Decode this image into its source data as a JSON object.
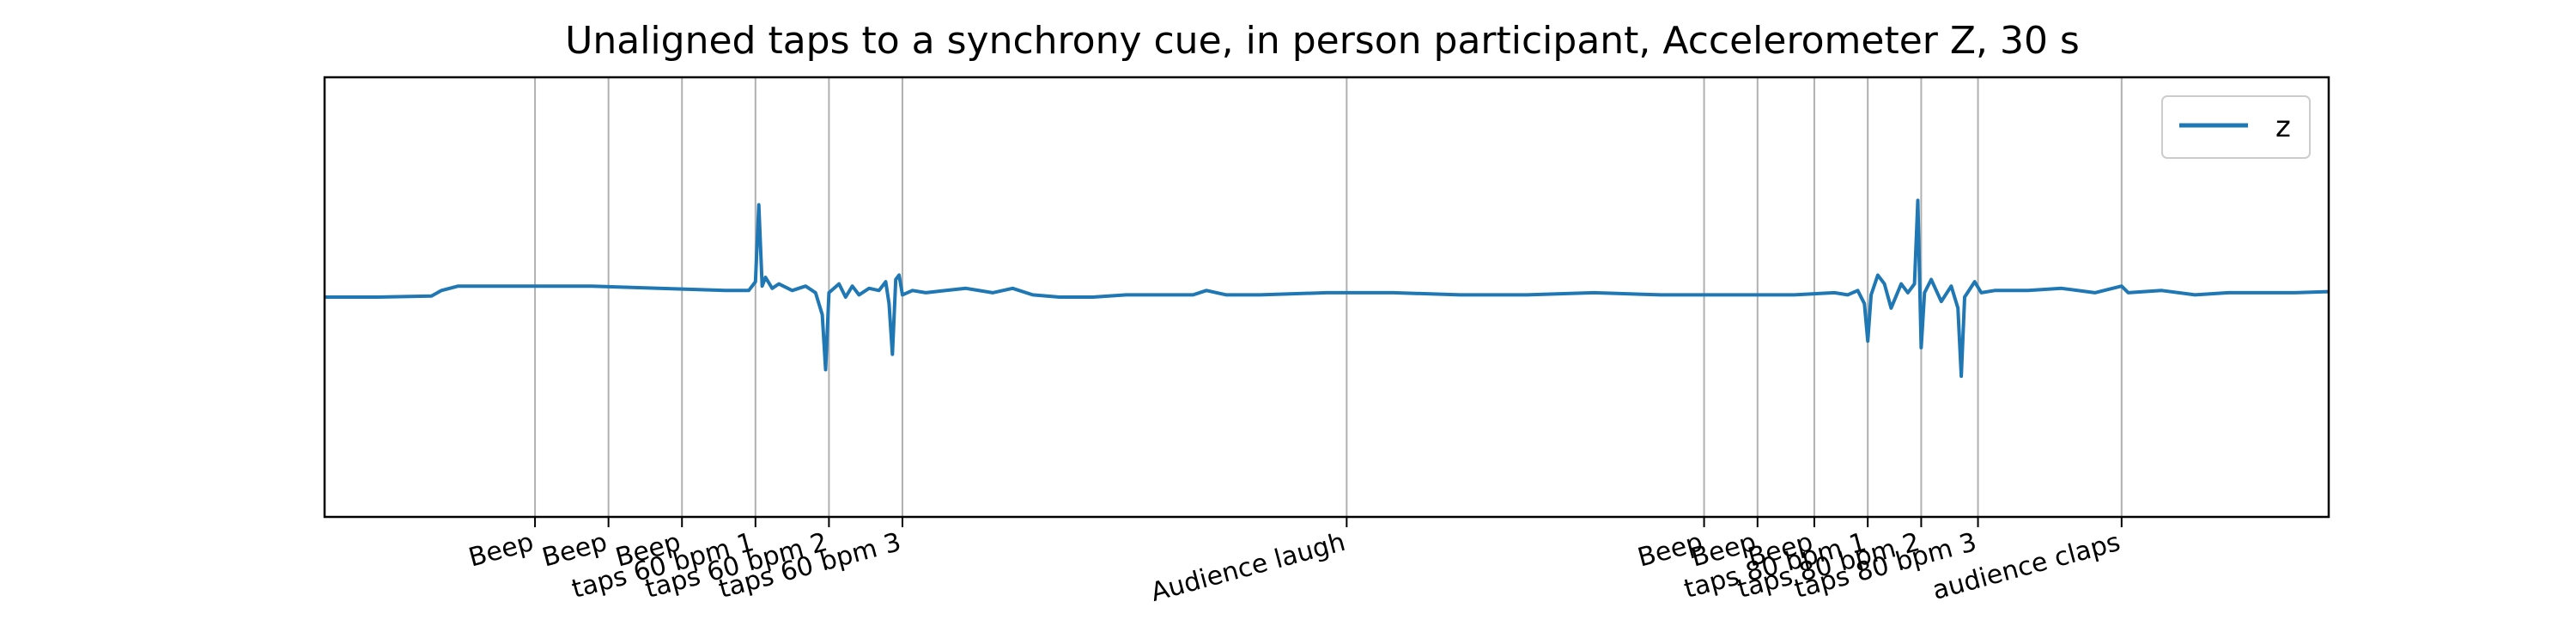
{
  "chart_data": {
    "type": "line",
    "title": "Unaligned taps to a synchrony cue, in person participant, Accelerometer Z, 30 s",
    "xlabel": "",
    "ylabel": "",
    "xlim": [
      0,
      30
    ],
    "ylim": [
      -1,
      1
    ],
    "grid": "vertical lines at annotated events",
    "legend": {
      "placement": "top-right",
      "entries": [
        "z"
      ]
    },
    "colors": {
      "series": "#1f77b4",
      "grid": "#b0b0b0",
      "axes": "#000000"
    },
    "events": [
      {
        "t": 3.15,
        "label": "Beep"
      },
      {
        "t": 4.25,
        "label": "Beep"
      },
      {
        "t": 5.35,
        "label": "Beep"
      },
      {
        "t": 6.45,
        "label": "taps 60 bpm 1"
      },
      {
        "t": 7.55,
        "label": "taps 60 bpm 2"
      },
      {
        "t": 8.65,
        "label": "taps 60 bpm 3"
      },
      {
        "t": 15.3,
        "label": "Audience laugh"
      },
      {
        "t": 20.65,
        "label": "Beep"
      },
      {
        "t": 21.45,
        "label": "Beep"
      },
      {
        "t": 22.3,
        "label": "Beep"
      },
      {
        "t": 23.1,
        "label": "taps 80 bpm 1"
      },
      {
        "t": 23.9,
        "label": "taps 80 bpm 2"
      },
      {
        "t": 24.75,
        "label": "taps 80 bpm 3"
      },
      {
        "t": 26.9,
        "label": "audience claps"
      }
    ],
    "series": [
      {
        "name": "z",
        "points": [
          [
            0,
            0.0
          ],
          [
            0.8,
            0.0
          ],
          [
            1.6,
            0.005
          ],
          [
            1.75,
            0.03
          ],
          [
            2.0,
            0.05
          ],
          [
            3.0,
            0.05
          ],
          [
            4.0,
            0.05
          ],
          [
            5.0,
            0.04
          ],
          [
            6.0,
            0.03
          ],
          [
            6.35,
            0.03
          ],
          [
            6.45,
            0.07
          ],
          [
            6.5,
            0.42
          ],
          [
            6.55,
            0.05
          ],
          [
            6.6,
            0.09
          ],
          [
            6.7,
            0.04
          ],
          [
            6.8,
            0.06
          ],
          [
            7.0,
            0.03
          ],
          [
            7.2,
            0.05
          ],
          [
            7.35,
            0.02
          ],
          [
            7.45,
            -0.08
          ],
          [
            7.5,
            -0.33
          ],
          [
            7.55,
            0.02
          ],
          [
            7.7,
            0.06
          ],
          [
            7.8,
            0.0
          ],
          [
            7.9,
            0.05
          ],
          [
            8.0,
            0.01
          ],
          [
            8.15,
            0.04
          ],
          [
            8.3,
            0.03
          ],
          [
            8.4,
            0.07
          ],
          [
            8.45,
            -0.03
          ],
          [
            8.5,
            -0.26
          ],
          [
            8.55,
            0.08
          ],
          [
            8.6,
            0.1
          ],
          [
            8.65,
            0.01
          ],
          [
            8.8,
            0.03
          ],
          [
            9.0,
            0.02
          ],
          [
            9.3,
            0.03
          ],
          [
            9.6,
            0.04
          ],
          [
            10.0,
            0.02
          ],
          [
            10.3,
            0.04
          ],
          [
            10.6,
            0.01
          ],
          [
            11.0,
            0.0
          ],
          [
            11.5,
            0.0
          ],
          [
            12.0,
            0.01
          ],
          [
            13.0,
            0.01
          ],
          [
            13.2,
            0.03
          ],
          [
            13.5,
            0.01
          ],
          [
            14.0,
            0.01
          ],
          [
            15.0,
            0.02
          ],
          [
            16.0,
            0.02
          ],
          [
            17.0,
            0.01
          ],
          [
            18.0,
            0.01
          ],
          [
            19.0,
            0.02
          ],
          [
            20.0,
            0.01
          ],
          [
            21.0,
            0.01
          ],
          [
            22.0,
            0.01
          ],
          [
            22.6,
            0.02
          ],
          [
            22.8,
            0.01
          ],
          [
            22.95,
            0.03
          ],
          [
            23.05,
            -0.03
          ],
          [
            23.1,
            -0.2
          ],
          [
            23.15,
            0.01
          ],
          [
            23.25,
            0.1
          ],
          [
            23.35,
            0.06
          ],
          [
            23.45,
            -0.05
          ],
          [
            23.6,
            0.06
          ],
          [
            23.7,
            0.02
          ],
          [
            23.8,
            0.06
          ],
          [
            23.85,
            0.44
          ],
          [
            23.9,
            -0.23
          ],
          [
            23.95,
            0.02
          ],
          [
            24.05,
            0.08
          ],
          [
            24.2,
            -0.02
          ],
          [
            24.35,
            0.05
          ],
          [
            24.45,
            -0.05
          ],
          [
            24.5,
            -0.36
          ],
          [
            24.55,
            0.0
          ],
          [
            24.7,
            0.07
          ],
          [
            24.8,
            0.02
          ],
          [
            25.0,
            0.03
          ],
          [
            25.5,
            0.03
          ],
          [
            26.0,
            0.04
          ],
          [
            26.5,
            0.02
          ],
          [
            26.9,
            0.05
          ],
          [
            27.0,
            0.02
          ],
          [
            27.5,
            0.03
          ],
          [
            28.0,
            0.01
          ],
          [
            28.5,
            0.02
          ],
          [
            29.0,
            0.02
          ],
          [
            29.5,
            0.02
          ],
          [
            30.0,
            0.025
          ]
        ]
      }
    ]
  }
}
